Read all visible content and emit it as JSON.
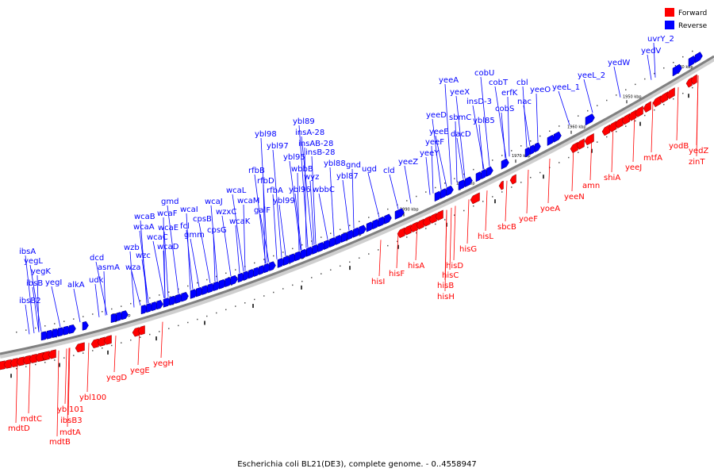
{
  "caption": "Escherichia coli BL21(DE3), complete genome. - 0..4558947",
  "legend": {
    "forward": {
      "label": "Forward",
      "color": "#ff0000"
    },
    "reverse": {
      "label": "Reverse",
      "color": "#0000ff"
    }
  },
  "axis_color": "#808080",
  "ticks": [
    "1940 kbp",
    "1950 kbp",
    "1960 kbp",
    "1970 kbp",
    "1980 kbp",
    "1990 kbp",
    "2000 kbp",
    "2010 kbp",
    "2020 kbp",
    "2030 kbp",
    "2040 kbp",
    "2050 kbp"
  ],
  "reverse_genes": [
    "uvrY_2",
    "yedV",
    "yedW",
    "yeeL_2",
    "yeeL_1",
    "yeeO",
    "cbl",
    "nac",
    "cobU",
    "cobT",
    "erfK",
    "cobS",
    "yeeA",
    "yeeX",
    "insD-3",
    "sbmC",
    "ybl85",
    "dacD",
    "yeeD",
    "yeeE",
    "yeeF",
    "yeeY",
    "yeeZ",
    "cld",
    "ugd",
    "gnd",
    "ybl88",
    "ybl87",
    "ybl89",
    "insA-28",
    "insAB-28",
    "insB-28",
    "ybl98",
    "ybl97",
    "ybl95",
    "wbbB",
    "wyz",
    "ybl96",
    "wbbC",
    "rfbB",
    "rfbD",
    "rfbA",
    "ybl99",
    "galF",
    "wcaL",
    "wcaM",
    "wcaK",
    "wcaJ",
    "wzxC",
    "cpsB",
    "cpsG",
    "wcaI",
    "fcl",
    "gmm",
    "gmd",
    "wcaF",
    "wcaE",
    "wcaB",
    "wcaA",
    "wcaC",
    "wcaD",
    "wzb",
    "wzc",
    "wza",
    "dcd",
    "asmA",
    "udk",
    "alkA",
    "ibsA",
    "yegL",
    "yegK",
    "ibsB2",
    "ibsB",
    "yegI"
  ],
  "forward_genes": [
    "yegH",
    "yegE",
    "yegD",
    "mdtC",
    "mdtD",
    "ybl101",
    "ybl100",
    "ibsB3",
    "mdtA",
    "mdtB",
    "hisI",
    "hisF",
    "hisA",
    "hisD",
    "hisC",
    "hisB",
    "hisH",
    "hisG",
    "hisL",
    "sbcB",
    "yoeF",
    "yoeA",
    "yeeN",
    "amn",
    "shiA",
    "yeeJ",
    "mtfA",
    "yodB",
    "yedZ",
    "zinT"
  ]
}
